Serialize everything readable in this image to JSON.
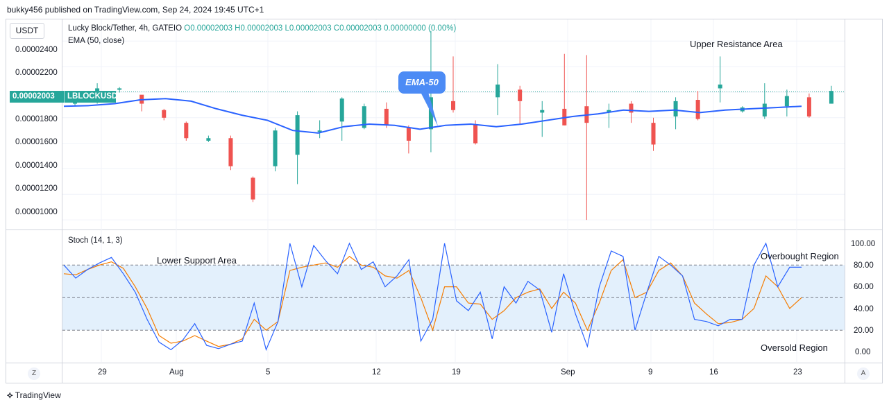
{
  "header": {
    "published_line": "bukky456 published on TradingView.com, Sep 24, 2024 19:45 UTC+1"
  },
  "currency_button": "USDT",
  "legend": {
    "symbol": "Lucky Block/Tether, 4h, GATEIO",
    "open": "O0.00002003",
    "high": "H0.00002003",
    "low": "L0.00002003",
    "close": "C0.00002003",
    "change": "0.00000000 (0.00%)",
    "ema": "EMA (50, close)"
  },
  "price_badge": {
    "value": "0.00002003",
    "symbol": "LBLOCKUSDT"
  },
  "price_axis": [
    "0.00002400",
    "0.00002200",
    "0.00001800",
    "0.00001600",
    "0.00001400",
    "0.00001200",
    "0.00001000"
  ],
  "stoch": {
    "label": "Stoch (14, 1, 3)",
    "axis": [
      "100.00",
      "80.00",
      "60.00",
      "40.00",
      "20.00",
      "0.00"
    ]
  },
  "annotations": {
    "upper_resistance": "Upper Resistance Area",
    "lower_support": "Lower Support Area",
    "overbought": "Overbought Region",
    "oversold": "Oversold Region",
    "ema_callout": "EMA-50"
  },
  "time_axis": [
    "29",
    "Aug",
    "5",
    "12",
    "19",
    "Sep",
    "9",
    "16",
    "23"
  ],
  "corner_buttons": {
    "left": "Z",
    "right": "A"
  },
  "footer": {
    "brand": "TradingView"
  },
  "colors": {
    "up": "#26a69a",
    "down": "#ef5350",
    "ema": "#2962ff",
    "k_line": "#2962ff",
    "d_line": "#f57c00",
    "band": "#e3f0fc"
  },
  "chart_data": [
    {
      "type": "candlestick",
      "title": "Lucky Block/Tether, 4h, GATEIO",
      "ylim": [
        9.3e-06,
        2.57e-05
      ],
      "overlay": {
        "name": "EMA (50, close)",
        "values": [
          1.89e-05,
          1.895e-05,
          1.91e-05,
          1.94e-05,
          1.95e-05,
          1.93e-05,
          1.87e-05,
          1.82e-05,
          1.78e-05,
          1.7e-05,
          1.68e-05,
          1.73e-05,
          1.75e-05,
          1.74e-05,
          1.71e-05,
          1.74e-05,
          1.75e-05,
          1.73e-05,
          1.75e-05,
          1.78e-05,
          1.81e-05,
          1.83e-05,
          1.86e-05,
          1.85e-05,
          1.86e-05,
          1.84e-05,
          1.86e-05,
          1.87e-05,
          1.88e-05,
          1.89e-05
        ]
      },
      "series": [
        {
          "name": "candles",
          "values": [
            [
              1.91e-05,
              1.96e-05,
              1.89e-05,
              1.92e-05
            ],
            [
              1.93e-05,
              2.03e-05,
              1.91e-05,
              2.07e-05
            ],
            [
              2.02e-05,
              2.03e-05,
              1.99e-05,
              2.04e-05
            ],
            [
              1.98e-05,
              1.91e-05,
              1.85e-05,
              1.97e-05
            ],
            [
              1.86e-05,
              1.8e-05,
              1.78e-05,
              1.87e-05
            ],
            [
              1.76e-05,
              1.64e-05,
              1.62e-05,
              1.77e-05
            ],
            [
              1.62e-05,
              1.64e-05,
              1.61e-05,
              1.66e-05
            ],
            [
              1.64e-05,
              1.42e-05,
              1.39e-05,
              1.66e-05
            ],
            [
              1.33e-05,
              1.16e-05,
              1.14e-05,
              1.34e-05
            ],
            [
              1.42e-05,
              1.7e-05,
              1.38e-05,
              1.72e-05
            ],
            [
              1.51e-05,
              1.82e-05,
              1.28e-05,
              1.85e-05
            ],
            [
              1.69e-05,
              1.7e-05,
              1.64e-05,
              1.78e-05
            ],
            [
              1.77e-05,
              1.95e-05,
              1.62e-05,
              1.96e-05
            ],
            [
              1.72e-05,
              1.89e-05,
              1.71e-05,
              1.91e-05
            ],
            [
              1.87e-05,
              1.74e-05,
              1.72e-05,
              1.92e-05
            ],
            [
              1.72e-05,
              1.62e-05,
              1.52e-05,
              1.74e-05
            ],
            [
              1.71e-05,
              1.96e-05,
              1.53e-05,
              2.48e-05
            ],
            [
              1.93e-05,
              1.86e-05,
              1.84e-05,
              2.28e-05
            ],
            [
              1.75e-05,
              1.6e-05,
              1.59e-05,
              1.78e-05
            ],
            [
              1.96e-05,
              2.06e-05,
              1.82e-05,
              2.22e-05
            ],
            [
              2.02e-05,
              1.93e-05,
              1.75e-05,
              2.05e-05
            ],
            [
              1.84e-05,
              1.86e-05,
              1.65e-05,
              1.93e-05
            ],
            [
              1.87e-05,
              1.74e-05,
              1.74e-05,
              2.3e-05
            ],
            [
              1.89e-05,
              1.76e-05,
              1e-05,
              2.29e-05
            ],
            [
              1.84e-05,
              1.86e-05,
              1.72e-05,
              1.91e-05
            ],
            [
              1.91e-05,
              1.84e-05,
              1.76e-05,
              1.93e-05
            ],
            [
              1.76e-05,
              1.59e-05,
              1.54e-05,
              1.8e-05
            ],
            [
              1.81e-05,
              1.93e-05,
              1.71e-05,
              1.96e-05
            ],
            [
              1.94e-05,
              1.79e-05,
              1.78e-05,
              2.01e-05
            ],
            [
              2.03e-05,
              2.06e-05,
              1.92e-05,
              2.28e-05
            ],
            [
              1.85e-05,
              1.88e-05,
              1.84e-05,
              1.89e-05
            ],
            [
              1.81e-05,
              1.91e-05,
              1.79e-05,
              2.07e-05
            ],
            [
              1.89e-05,
              1.97e-05,
              1.81e-05,
              2.02e-05
            ],
            [
              1.96e-05,
              1.81e-05,
              1.8e-05,
              1.99e-05
            ],
            [
              1.91e-05,
              2.01e-05,
              1.91e-05,
              2.05e-05
            ]
          ]
        }
      ]
    },
    {
      "type": "line",
      "title": "Stoch (14, 1, 3)",
      "ylim": [
        0,
        100
      ],
      "reference_lines": [
        80,
        50,
        20
      ],
      "series": [
        {
          "name": "%K",
          "values": [
            80,
            68,
            76,
            82,
            87,
            72,
            55,
            30,
            9,
            2,
            11,
            26,
            6,
            3,
            7,
            10,
            45,
            2,
            28,
            100,
            60,
            98,
            84,
            72,
            100,
            76,
            83,
            60,
            70,
            85,
            10,
            30,
            100,
            47,
            38,
            55,
            12,
            60,
            45,
            65,
            57,
            18,
            72,
            35,
            5,
            60,
            93,
            88,
            20,
            55,
            88,
            80,
            70,
            30,
            28,
            24,
            30,
            30,
            80,
            100,
            60,
            78,
            78
          ]
        },
        {
          "name": "%D",
          "values": [
            72,
            71,
            76,
            80,
            83,
            77,
            60,
            40,
            15,
            8,
            10,
            15,
            10,
            5,
            7,
            12,
            30,
            20,
            28,
            75,
            78,
            80,
            82,
            78,
            88,
            80,
            78,
            70,
            68,
            75,
            50,
            20,
            60,
            60,
            45,
            44,
            30,
            38,
            50,
            55,
            58,
            40,
            55,
            45,
            20,
            45,
            75,
            85,
            50,
            55,
            75,
            82,
            70,
            45,
            35,
            26,
            27,
            30,
            40,
            70,
            60,
            40,
            50
          ]
        }
      ]
    }
  ]
}
